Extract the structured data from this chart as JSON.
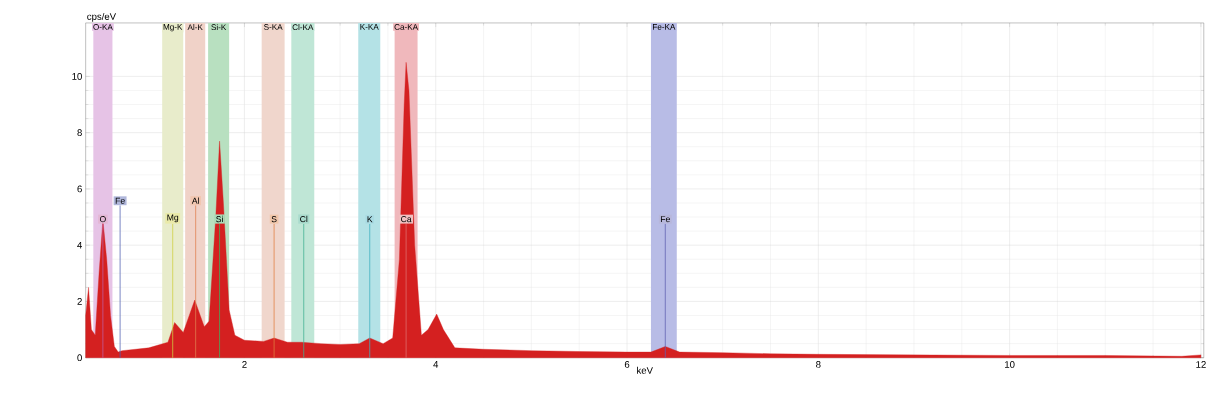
{
  "chart_data": {
    "type": "area",
    "xlabel": "keV",
    "ylabel": "cps/eV",
    "xlim": [
      0.34,
      12.03
    ],
    "ylim": [
      0,
      11.9
    ],
    "xticks": [
      2,
      4,
      6,
      8,
      10,
      12
    ],
    "yticks": [
      0,
      2,
      4,
      6,
      8,
      10
    ],
    "grid": true,
    "series": [
      {
        "color": "#d42020",
        "x": [
          0.34,
          0.37,
          0.4,
          0.44,
          0.48,
          0.52,
          0.56,
          0.6,
          0.64,
          0.68,
          0.72,
          1.0,
          1.2,
          1.27,
          1.36,
          1.48,
          1.58,
          1.63,
          1.7,
          1.74,
          1.78,
          1.84,
          1.9,
          2.0,
          2.2,
          2.31,
          2.45,
          2.6,
          2.8,
          3.0,
          3.2,
          3.31,
          3.45,
          3.55,
          3.62,
          3.67,
          3.69,
          3.72,
          3.78,
          3.85,
          3.92,
          4.01,
          4.08,
          4.2,
          4.5,
          5.0,
          5.5,
          6.0,
          6.25,
          6.4,
          6.55,
          7.0,
          7.5,
          8.0,
          9.0,
          10.0,
          11.0,
          11.8,
          12.0
        ],
        "values": [
          1.5,
          2.5,
          1.0,
          0.8,
          3.0,
          4.9,
          3.5,
          1.5,
          0.4,
          0.2,
          0.25,
          0.35,
          0.55,
          1.25,
          0.9,
          2.05,
          1.1,
          1.3,
          5.0,
          7.7,
          5.5,
          1.7,
          0.8,
          0.62,
          0.58,
          0.7,
          0.55,
          0.55,
          0.5,
          0.47,
          0.5,
          0.7,
          0.5,
          0.7,
          3.5,
          9.0,
          10.5,
          9.5,
          4.0,
          0.8,
          1.0,
          1.55,
          1.0,
          0.35,
          0.3,
          0.25,
          0.22,
          0.2,
          0.2,
          0.4,
          0.2,
          0.18,
          0.14,
          0.12,
          0.1,
          0.08,
          0.08,
          0.05,
          0.1
        ]
      }
    ],
    "bands": [
      {
        "axis": "x",
        "from": 0.42,
        "to": 0.62,
        "label": "O-KA",
        "color": "#e6c3e6"
      },
      {
        "axis": "x",
        "from": 1.14,
        "to": 1.36,
        "label": "Mg-K",
        "color": "#e8eccb"
      },
      {
        "axis": "x",
        "from": 1.38,
        "to": 1.59,
        "label": "Al-K",
        "color": "#f0d2c8"
      },
      {
        "axis": "x",
        "from": 1.62,
        "to": 1.84,
        "label": "Si-K",
        "color": "#b8e0c0"
      },
      {
        "axis": "x",
        "from": 2.18,
        "to": 2.42,
        "label": "S-KA",
        "color": "#f0d6cc"
      },
      {
        "axis": "x",
        "from": 2.49,
        "to": 2.73,
        "label": "Cl-KA",
        "color": "#bfe6d6"
      },
      {
        "axis": "x",
        "from": 3.19,
        "to": 3.42,
        "label": "K-KA",
        "color": "#b4e2e6"
      },
      {
        "axis": "x",
        "from": 3.57,
        "to": 3.81,
        "label": "Ca-KA",
        "color": "#f0b8bc"
      },
      {
        "axis": "x",
        "from": 6.25,
        "to": 6.52,
        "label": "Fe-KA",
        "color": "#b8bce6"
      }
    ],
    "ref_lines": [
      {
        "axis": "x",
        "value": 0.52,
        "label": "O",
        "color": "#c060a0"
      },
      {
        "axis": "x",
        "value": 0.7,
        "label": "Fe",
        "color": "#5060b0"
      },
      {
        "axis": "x",
        "value": 1.25,
        "label": "Mg",
        "color": "#d0d040"
      },
      {
        "axis": "x",
        "value": 1.49,
        "label": "Al",
        "color": "#e08050"
      },
      {
        "axis": "x",
        "value": 1.74,
        "label": "Si",
        "color": "#40b060"
      },
      {
        "axis": "x",
        "value": 2.31,
        "label": "S",
        "color": "#e08040"
      },
      {
        "axis": "x",
        "value": 2.62,
        "label": "Cl",
        "color": "#40b090"
      },
      {
        "axis": "x",
        "value": 3.31,
        "label": "K",
        "color": "#40b0c0"
      },
      {
        "axis": "x",
        "value": 3.69,
        "label": "Ca",
        "color": "#e07070"
      },
      {
        "axis": "x",
        "value": 6.4,
        "label": "Fe",
        "color": "#6060b0"
      }
    ]
  }
}
